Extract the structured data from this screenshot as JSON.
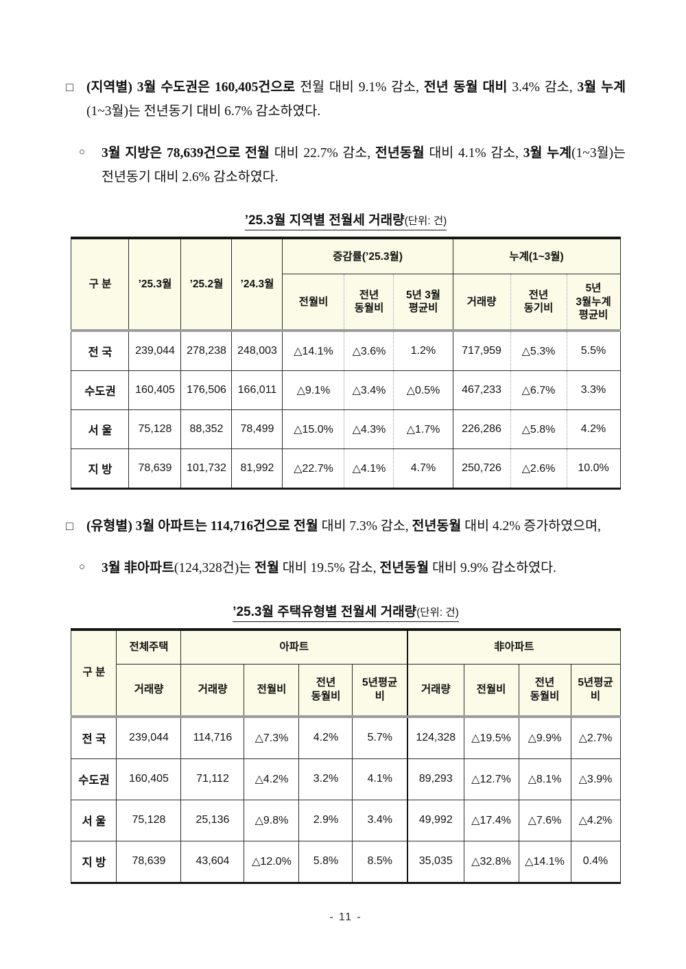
{
  "page": {
    "number": "- 11 -"
  },
  "colors": {
    "header_bg": "#fbfbe7",
    "outer_border": "#151515",
    "inner_border": "#2b2b2b",
    "header_band_gray": "#9b9b9b",
    "dotted_line": "#979797"
  },
  "paragraphs": [
    {
      "marker": "□",
      "runs": [
        {
          "t": "(지역별) 3월 수도권은 160,405건으로",
          "b": true
        },
        {
          "t": " 전월 대비 9.1% 감소, ",
          "b": false
        },
        {
          "t": "전년 동월 대비",
          "b": true
        },
        {
          "t": " 3.4% 감소, ",
          "b": false
        },
        {
          "t": "3월 누계",
          "b": true
        },
        {
          "t": "(1~3월)는 전년동기 대비 6.7% 감소하였다.",
          "b": false
        }
      ]
    },
    {
      "marker": "○",
      "runs": [
        {
          "t": "3월 지방은 78,639건으로 전월",
          "b": true
        },
        {
          "t": " 대비 22.7% 감소, ",
          "b": false
        },
        {
          "t": "전년동월",
          "b": true
        },
        {
          "t": " 대비 4.1% 감소, ",
          "b": false
        },
        {
          "t": "3월 누계",
          "b": true
        },
        {
          "t": "(1~3월)는 전년동기 대비 2.6% 감소하였다.",
          "b": false
        }
      ]
    },
    {
      "marker": "□",
      "runs": [
        {
          "t": "(유형별) 3월 아파트는 114,716건으로 전월",
          "b": true
        },
        {
          "t": " 대비 7.3% 감소, ",
          "b": false
        },
        {
          "t": "전년동월",
          "b": true
        },
        {
          "t": " 대비 4.2% 증가하였으며,",
          "b": false
        }
      ]
    },
    {
      "marker": "○",
      "runs": [
        {
          "t": "3월 非아파트",
          "b": true
        },
        {
          "t": "(124,328건)는 ",
          "b": false
        },
        {
          "t": "전월",
          "b": true
        },
        {
          "t": " 대비 19.5% 감소, ",
          "b": false
        },
        {
          "t": "전년동월",
          "b": true
        },
        {
          "t": " 대비 9.9% 감소하였다.",
          "b": false
        }
      ]
    }
  ],
  "tables": [
    {
      "title": "’25.3월 지역별 전월세 거래량",
      "unit": "(단위: 건)",
      "header": {
        "corner": "구 분",
        "months": [
          "’25.3월",
          "’25.2월",
          "’24.3월"
        ],
        "group1": "증감률(’25.3월)",
        "group1_subs": [
          "전월비",
          "전년\n동월비",
          "5년 3월\n평균비"
        ],
        "group2": "누계(1~3월)",
        "group2_subs": [
          "거래량",
          "전년\n동기비",
          "5년\n3월누계\n평균비"
        ]
      },
      "rows": [
        [
          "전 국",
          "239,044",
          "278,238",
          "248,003",
          "△14.1%",
          "△3.6%",
          "1.2%",
          "717,959",
          "△5.3%",
          "5.5%"
        ],
        [
          "수도권",
          "160,405",
          "176,506",
          "166,011",
          "△9.1%",
          "△3.4%",
          "△0.5%",
          "467,233",
          "△6.7%",
          "3.3%"
        ],
        [
          "서 울",
          "75,128",
          "88,352",
          "78,499",
          "△15.0%",
          "△4.3%",
          "△1.7%",
          "226,286",
          "△5.8%",
          "4.2%"
        ],
        [
          "지 방",
          "78,639",
          "101,732",
          "81,992",
          "△22.7%",
          "△4.1%",
          "4.7%",
          "250,726",
          "△2.6%",
          "10.0%"
        ]
      ]
    },
    {
      "title": "’25.3월 주택유형별 전월세 거래량",
      "unit": "(단위: 건)",
      "header": {
        "corner": "구 분",
        "total_label": "전체주택",
        "total_sub": "거래량",
        "group1": "아파트",
        "group1_subs": [
          "거래량",
          "전월비",
          "전년\n동월비",
          "5년평균\n비"
        ],
        "group2": "非아파트",
        "group2_subs": [
          "거래량",
          "전월비",
          "전년\n동월비",
          "5년평균\n비"
        ]
      },
      "rows": [
        [
          "전 국",
          "239,044",
          "114,716",
          "△7.3%",
          "4.2%",
          "5.7%",
          "124,328",
          "△19.5%",
          "△9.9%",
          "△2.7%"
        ],
        [
          "수도권",
          "160,405",
          "71,112",
          "△4.2%",
          "3.2%",
          "4.1%",
          "89,293",
          "△12.7%",
          "△8.1%",
          "△3.9%"
        ],
        [
          "서 울",
          "75,128",
          "25,136",
          "△9.8%",
          "2.9%",
          "3.4%",
          "49,992",
          "△17.4%",
          "△7.6%",
          "△4.2%"
        ],
        [
          "지 방",
          "78,639",
          "43,604",
          "△12.0%",
          "5.8%",
          "8.5%",
          "35,035",
          "△32.8%",
          "△14.1%",
          "0.4%"
        ]
      ]
    }
  ]
}
